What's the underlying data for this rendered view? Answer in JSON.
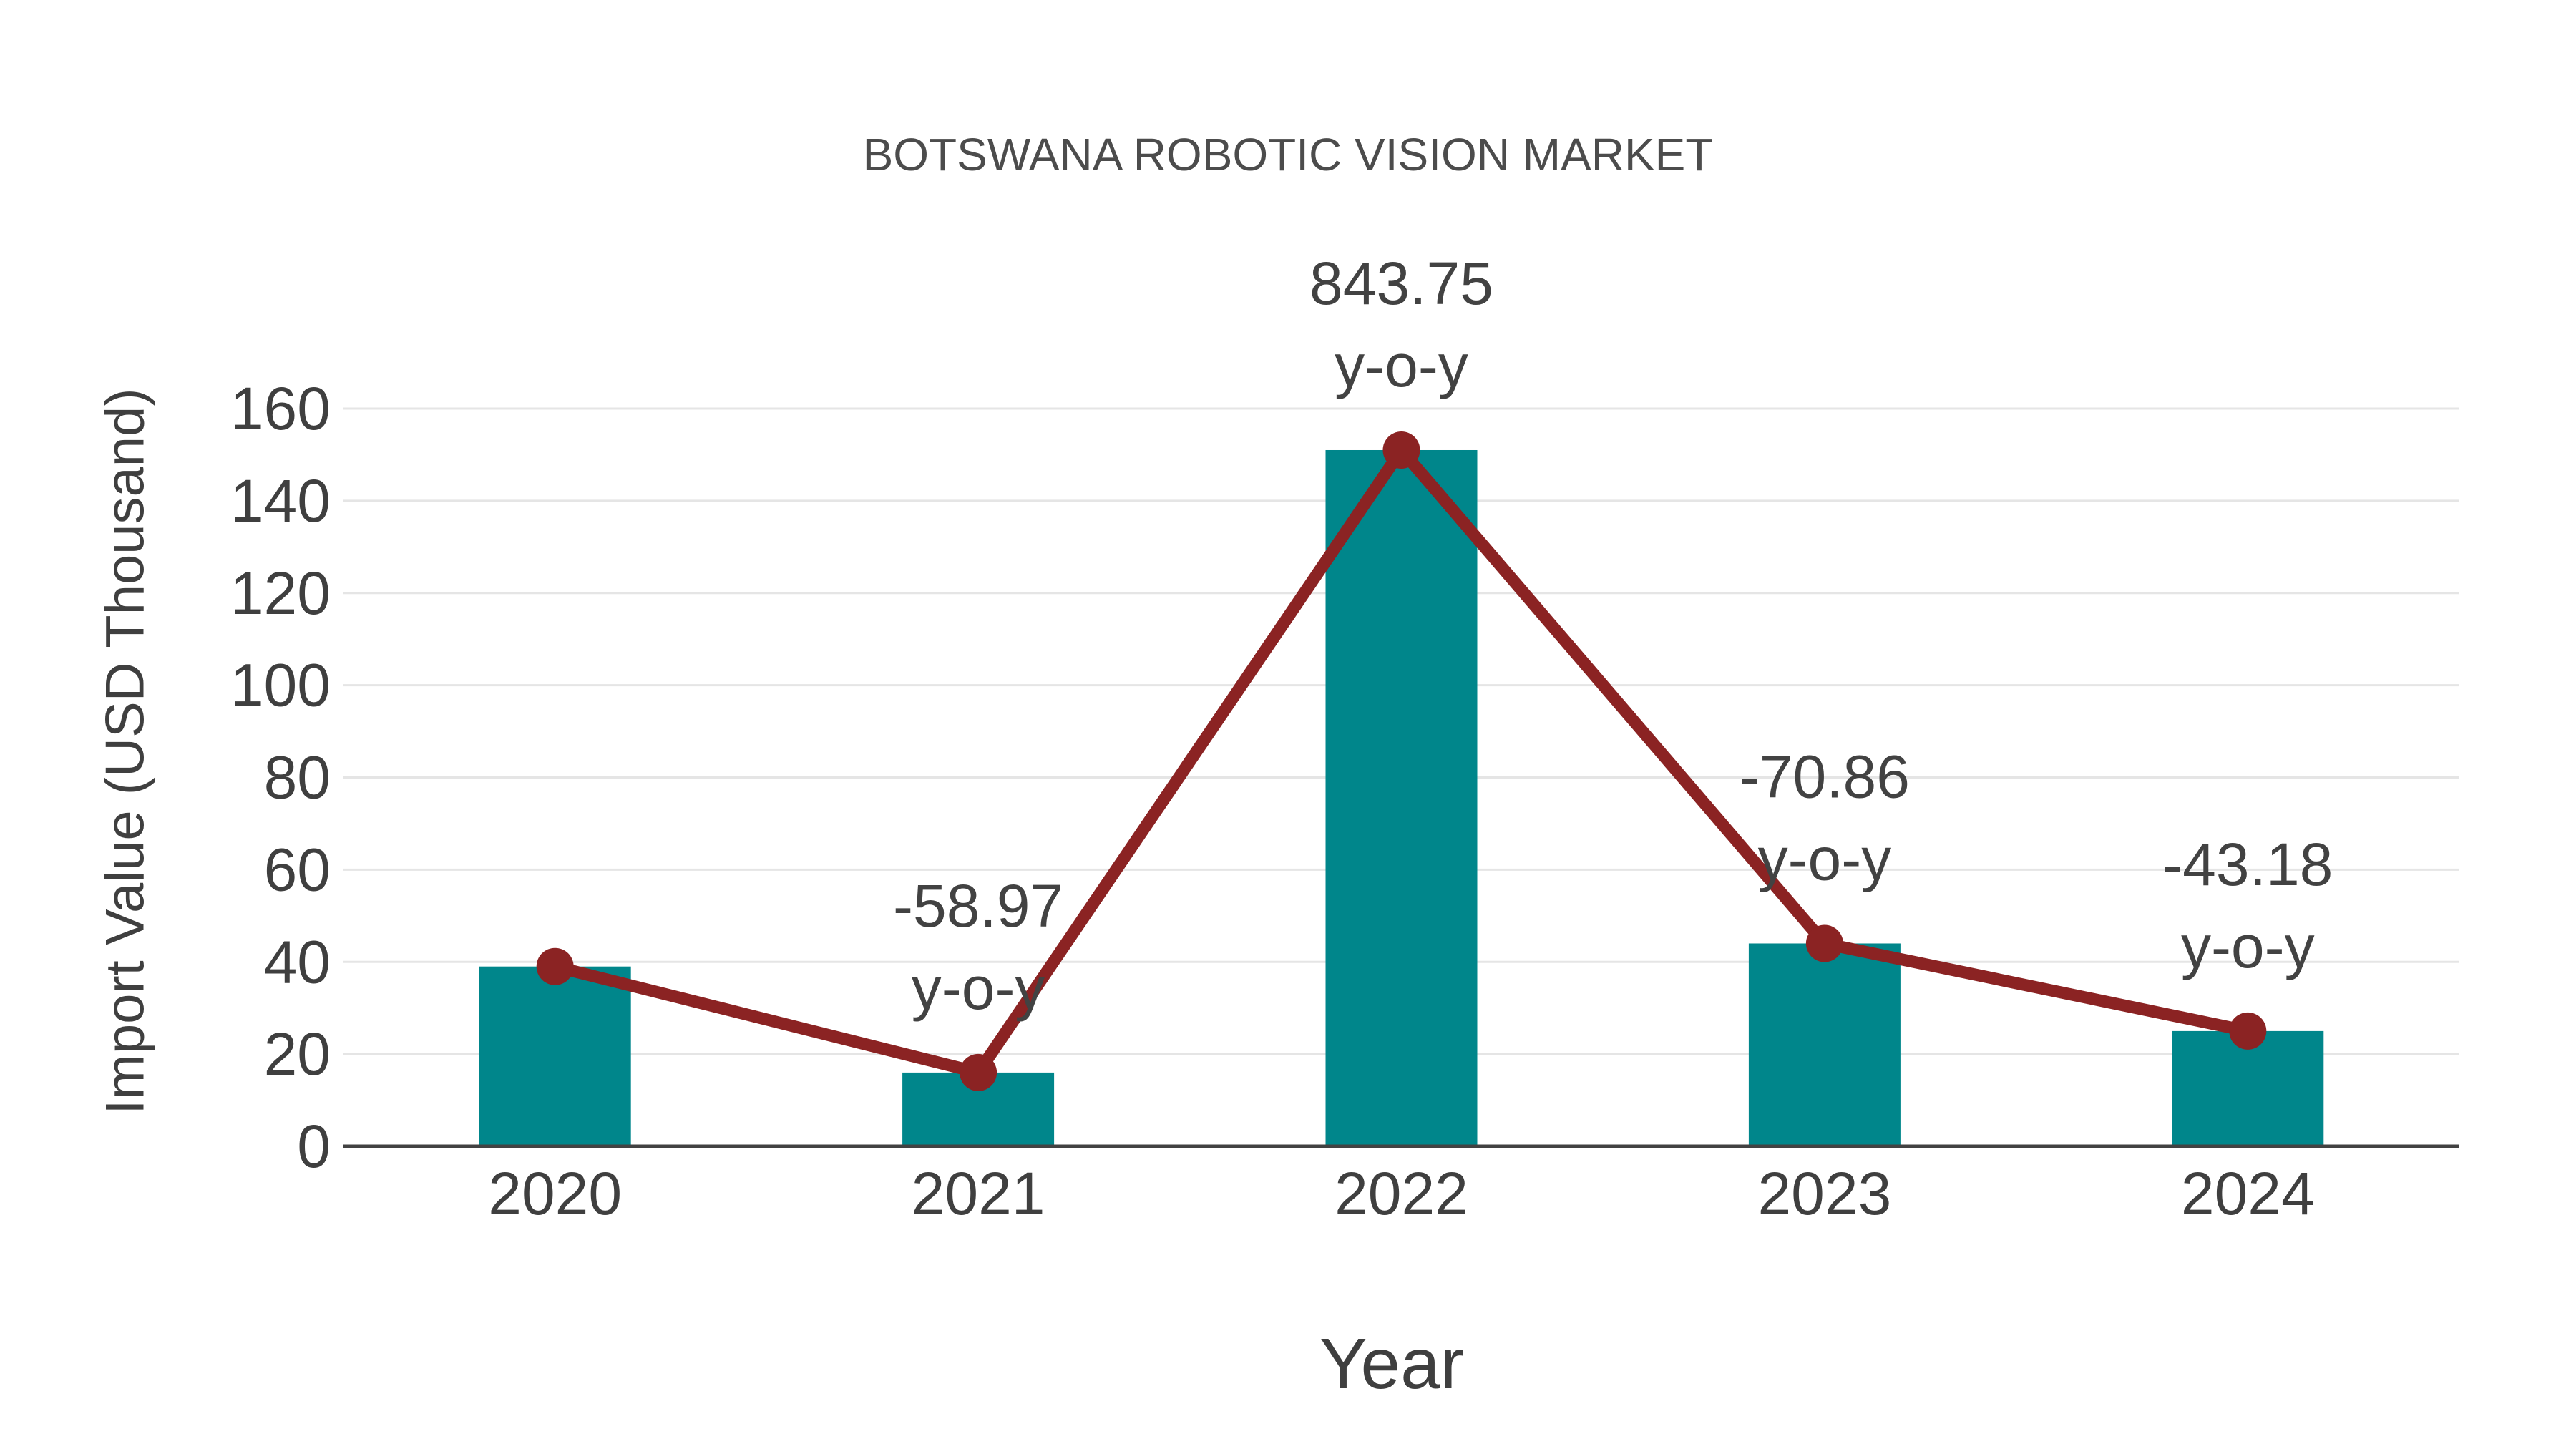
{
  "chart_data": {
    "type": "bar",
    "title": "BOTSWANA ROBOTIC VISION MARKET",
    "xlabel": "Year",
    "ylabel": "Import Value (USD Thousand)",
    "categories": [
      "2020",
      "2021",
      "2022",
      "2023",
      "2024"
    ],
    "series": [
      {
        "name": "Import Value bars",
        "type": "bar",
        "values": [
          39,
          16,
          151,
          44,
          25
        ]
      },
      {
        "name": "Import Value trend",
        "type": "line",
        "values": [
          39,
          16,
          151,
          44,
          25
        ]
      }
    ],
    "annotations": [
      {
        "category": "2021",
        "line1": "-58.97",
        "line2": "y-o-y"
      },
      {
        "category": "2022",
        "line1": "843.75",
        "line2": "y-o-y"
      },
      {
        "category": "2023",
        "line1": "-70.86",
        "line2": "y-o-y"
      },
      {
        "category": "2024",
        "line1": "-43.18",
        "line2": "y-o-y"
      }
    ],
    "ylim": [
      0,
      160
    ],
    "yticks": [
      0,
      20,
      40,
      60,
      80,
      100,
      120,
      140,
      160
    ],
    "grid": true,
    "legend_position": "none"
  },
  "colors": {
    "background": "#FFFFFF",
    "bar": "#00868B",
    "line": "#8B2323",
    "marker": "#8B2323",
    "grid": "#E5E5E5",
    "axis": "#424242",
    "tick_text": "#3F3F3F",
    "annotation_text": "#424242",
    "title_text": "#4C4C4C"
  }
}
